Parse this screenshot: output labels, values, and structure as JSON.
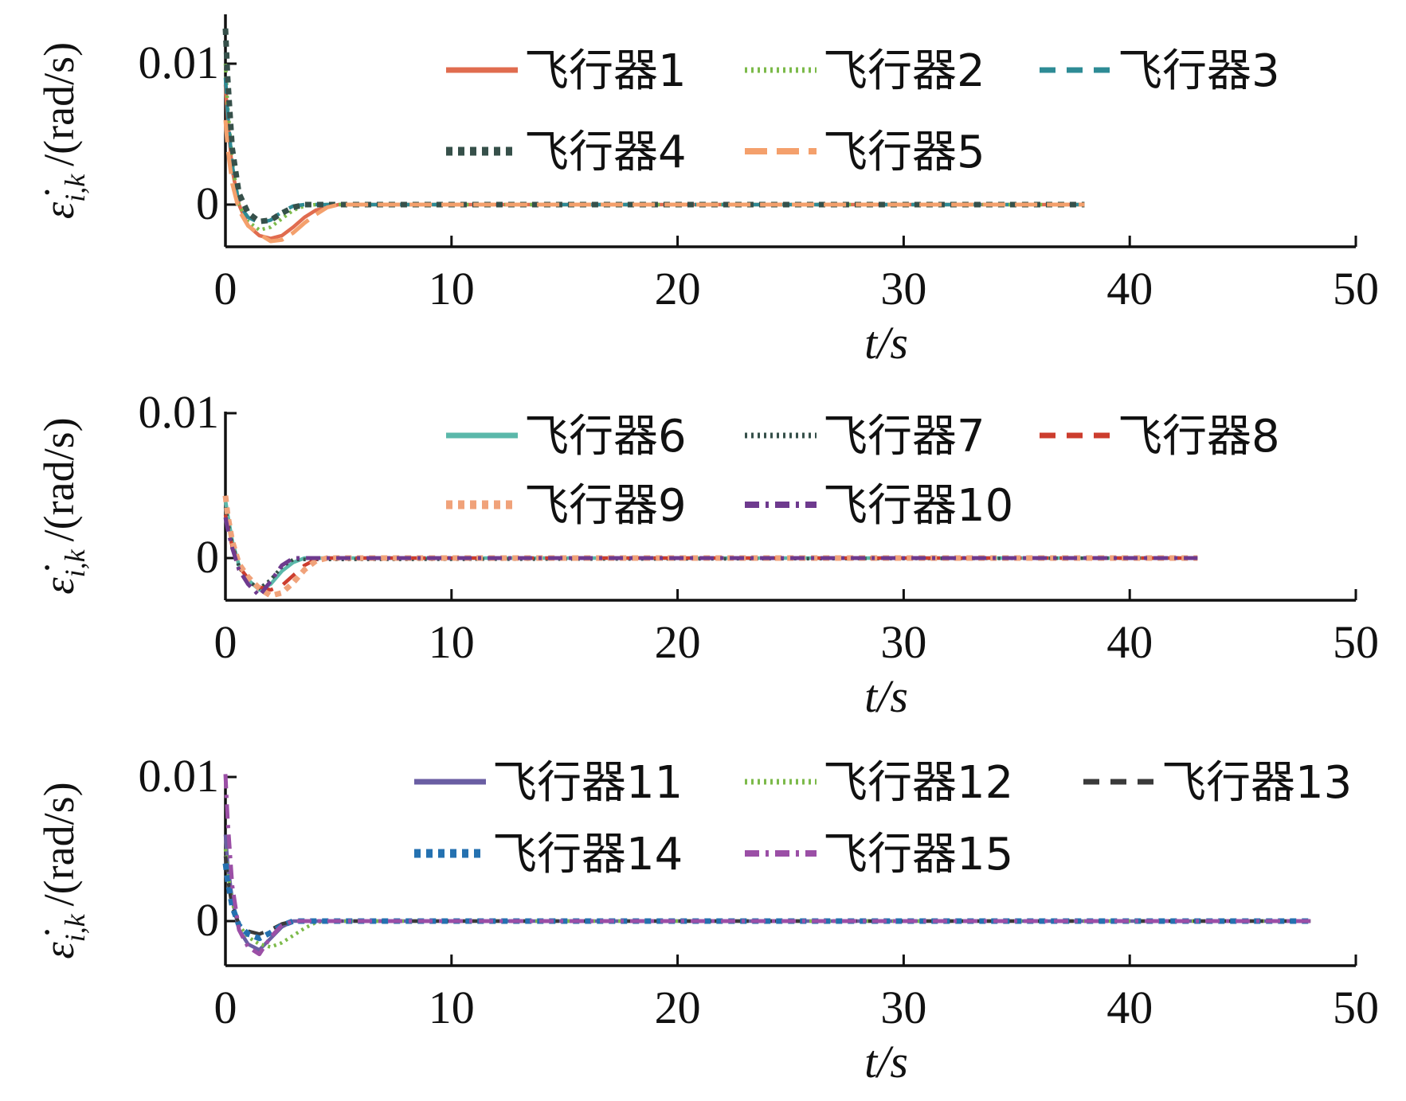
{
  "chart_data": [
    {
      "type": "line",
      "xlabel": "t/s",
      "ylabel": "ε̇_{i,k} /(rad/s)",
      "ylabel_symbol": "ε̇",
      "ylabel_subscript": "i,k",
      "ylabel_unit": "/(rad/s)",
      "xlim": [
        0,
        50
      ],
      "ylim": [
        -0.003,
        0.0135
      ],
      "xticks": [
        "0",
        "10",
        "20",
        "30",
        "40",
        "50"
      ],
      "yticks": [
        "0",
        "0.01"
      ],
      "grid": false,
      "legend_position": "top-right",
      "series": [
        {
          "name": "飞行器1",
          "color": "#e06c4f",
          "dash": "solid",
          "x": [
            0,
            0.1,
            0.3,
            0.6,
            1.0,
            1.5,
            2.0,
            2.5,
            3.0,
            3.5,
            4.0,
            5.0,
            38
          ],
          "y": [
            0.0085,
            0.006,
            0.0025,
            0.0,
            -0.0015,
            -0.0022,
            -0.0024,
            -0.0022,
            -0.0016,
            -0.0009,
            -0.0004,
            0.0,
            0.0
          ]
        },
        {
          "name": "飞行器2",
          "color": "#7cba4a",
          "dash": "dotted",
          "x": [
            0,
            0.1,
            0.3,
            0.6,
            1.0,
            1.5,
            2.0,
            2.5,
            3.0,
            3.5,
            4.0,
            38
          ],
          "y": [
            0.01,
            0.007,
            0.003,
            0.0,
            -0.0012,
            -0.0018,
            -0.0016,
            -0.001,
            -0.0004,
            -0.0001,
            0.0,
            0.0
          ]
        },
        {
          "name": "飞行器3",
          "color": "#2e8b95",
          "dash": "dashed",
          "x": [
            0,
            0.1,
            0.3,
            0.6,
            1.0,
            1.5,
            2.0,
            2.5,
            3.0,
            3.5,
            38
          ],
          "y": [
            0.009,
            0.0065,
            0.0028,
            0.0,
            -0.0009,
            -0.0013,
            -0.0011,
            -0.0005,
            -0.0001,
            0.0,
            0.0
          ]
        },
        {
          "name": "飞行器4",
          "color": "#36504a",
          "dash": "dotted-thick",
          "x": [
            0,
            0.1,
            0.3,
            0.6,
            1.0,
            1.5,
            2.0,
            2.5,
            3.0,
            3.5,
            38
          ],
          "y": [
            0.0125,
            0.009,
            0.004,
            0.0008,
            -0.0006,
            -0.0012,
            -0.0011,
            -0.0006,
            -0.0002,
            0.0,
            0.0
          ]
        },
        {
          "name": "飞行器5",
          "color": "#f4a06c",
          "dash": "dashed-long",
          "x": [
            0,
            0.1,
            0.3,
            0.6,
            1.0,
            1.5,
            2.0,
            2.5,
            3.0,
            3.5,
            4.0,
            4.5,
            5.0,
            38
          ],
          "y": [
            0.006,
            0.004,
            0.0015,
            -0.0004,
            -0.0015,
            -0.0021,
            -0.0026,
            -0.0025,
            -0.002,
            -0.0013,
            -0.0007,
            -0.0002,
            0.0,
            0.0
          ]
        }
      ]
    },
    {
      "type": "line",
      "xlabel": "t/s",
      "ylabel": "ε̇_{i,k} /(rad/s)",
      "ylabel_symbol": "ε̇",
      "ylabel_subscript": "i,k",
      "ylabel_unit": "/(rad/s)",
      "xlim": [
        0,
        50
      ],
      "ylim": [
        -0.003,
        0.01
      ],
      "xticks": [
        "0",
        "10",
        "20",
        "30",
        "40",
        "50"
      ],
      "yticks": [
        "0",
        "0.01"
      ],
      "grid": false,
      "legend_position": "top-right",
      "series": [
        {
          "name": "飞行器6",
          "color": "#5bb8aa",
          "dash": "solid",
          "x": [
            0,
            0.1,
            0.3,
            0.6,
            1.0,
            1.5,
            2.0,
            2.5,
            3.0,
            3.5,
            43
          ],
          "y": [
            0.004,
            0.003,
            0.0012,
            -0.0005,
            -0.0015,
            -0.0022,
            -0.0018,
            -0.0009,
            -0.0003,
            0.0,
            0.0
          ]
        },
        {
          "name": "飞行器7",
          "color": "#36504a",
          "dash": "dotted",
          "x": [
            0,
            0.1,
            0.3,
            0.6,
            1.0,
            1.5,
            2.0,
            2.5,
            3.0,
            43
          ],
          "y": [
            0.0035,
            0.0025,
            0.001,
            -0.0006,
            -0.0016,
            -0.0021,
            -0.0015,
            -0.0006,
            -0.0001,
            0.0
          ]
        },
        {
          "name": "飞行器8",
          "color": "#cc3d2e",
          "dash": "dashed",
          "x": [
            0,
            0.1,
            0.3,
            0.6,
            1.0,
            1.5,
            2.0,
            2.5,
            3.0,
            3.5,
            4.0,
            4.5,
            43
          ],
          "y": [
            0.003,
            0.0022,
            0.0008,
            -0.0006,
            -0.0014,
            -0.002,
            -0.0022,
            -0.0019,
            -0.0012,
            -0.0005,
            -0.0001,
            0.0,
            0.0
          ]
        },
        {
          "name": "飞行器9",
          "color": "#f0a27a",
          "dash": "dotted-thick",
          "x": [
            0,
            0.1,
            0.3,
            0.6,
            1.0,
            1.5,
            2.0,
            2.5,
            3.0,
            3.5,
            4.0,
            4.5,
            43
          ],
          "y": [
            0.0043,
            0.003,
            0.0012,
            -0.0004,
            -0.0013,
            -0.0021,
            -0.0026,
            -0.0024,
            -0.0017,
            -0.0008,
            -0.0002,
            0.0,
            0.0
          ]
        },
        {
          "name": "飞行器10",
          "color": "#6e3a8e",
          "dash": "dashdot",
          "x": [
            0,
            0.1,
            0.3,
            0.6,
            1.0,
            1.5,
            2.0,
            2.5,
            3.0,
            43
          ],
          "y": [
            0.0028,
            0.002,
            0.0007,
            -0.0008,
            -0.0018,
            -0.0026,
            -0.0016,
            -0.0005,
            0.0,
            0.0
          ]
        }
      ]
    },
    {
      "type": "line",
      "xlabel": "t/s",
      "ylabel": "ε̇_{i,k} /(rad/s)",
      "ylabel_symbol": "ε̇",
      "ylabel_subscript": "i,k",
      "ylabel_unit": "/(rad/s)",
      "xlim": [
        0,
        50
      ],
      "ylim": [
        -0.003,
        0.01
      ],
      "xticks": [
        "0",
        "10",
        "20",
        "30",
        "40",
        "50"
      ],
      "yticks": [
        "0",
        "0.01"
      ],
      "grid": false,
      "legend_position": "top-right",
      "series": [
        {
          "name": "飞行器11",
          "color": "#6a5ea3",
          "dash": "solid",
          "x": [
            0,
            0.1,
            0.3,
            0.6,
            1.0,
            1.5,
            2.0,
            2.5,
            3.0,
            48
          ],
          "y": [
            0.006,
            0.004,
            0.0015,
            -0.0006,
            -0.0016,
            -0.002,
            -0.0012,
            -0.0004,
            0.0,
            0.0
          ]
        },
        {
          "name": "飞行器12",
          "color": "#7cba4a",
          "dash": "dotted",
          "x": [
            0,
            0.1,
            0.3,
            0.6,
            1.0,
            1.5,
            2.0,
            2.5,
            3.0,
            3.5,
            4.0,
            4.5,
            48
          ],
          "y": [
            0.005,
            0.0035,
            0.0013,
            -0.0003,
            -0.0011,
            -0.0016,
            -0.0018,
            -0.0015,
            -0.001,
            -0.0005,
            -0.0001,
            0.0,
            0.0
          ]
        },
        {
          "name": "飞行器13",
          "color": "#3a3a3a",
          "dash": "dashed",
          "x": [
            0,
            0.1,
            0.3,
            0.6,
            1.0,
            1.5,
            2.0,
            2.5,
            3.0,
            48
          ],
          "y": [
            0.0045,
            0.003,
            0.001,
            -0.0002,
            -0.0007,
            -0.0009,
            -0.0006,
            -0.0002,
            0.0,
            0.0
          ]
        },
        {
          "name": "飞行器14",
          "color": "#2471b0",
          "dash": "dotted-thick",
          "x": [
            0,
            0.1,
            0.3,
            0.6,
            1.0,
            1.5,
            2.0,
            2.5,
            3.0,
            48
          ],
          "y": [
            0.004,
            0.0028,
            0.001,
            -0.0003,
            -0.0009,
            -0.0012,
            -0.0008,
            -0.0003,
            0.0,
            0.0
          ]
        },
        {
          "name": "飞行器15",
          "color": "#9b4fa6",
          "dash": "dashdot",
          "x": [
            0,
            0.1,
            0.3,
            0.6,
            1.0,
            1.5,
            2.0,
            2.5,
            3.0,
            48
          ],
          "y": [
            0.0102,
            0.007,
            0.0025,
            -0.0006,
            -0.0018,
            -0.0023,
            -0.0011,
            -0.0003,
            0.0,
            0.0
          ]
        }
      ]
    }
  ]
}
